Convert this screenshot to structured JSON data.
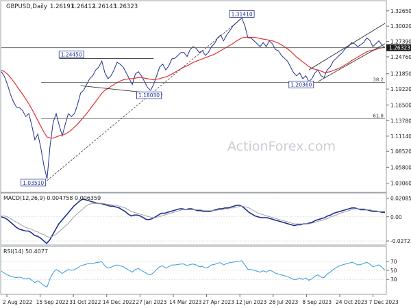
{
  "chart_data": {
    "type": "line",
    "instrument": "GBPUSD",
    "timeframe": "Daily",
    "header": {
      "label": "GBPUSD,Daily",
      "ohlc": [
        "1.26191",
        "1.26412",
        "1.26143",
        "1.26323"
      ]
    },
    "watermark": "ActionForex.com",
    "x_ticks": [
      "2 Aug 2022",
      "15 Sep 2022",
      "31 Oct 2022",
      "14 Dec 2022",
      "27 Jan 2023",
      "14 Mar 2023",
      "27 Apr 2023",
      "12 Jun 2023",
      "26 Jul 2023",
      "8 Sep 2023",
      "24 Oct 2023",
      "7 Dec 2023"
    ],
    "price_panel": {
      "ylim": [
        1.022,
        1.338
      ],
      "y_ticks": [
        "1.32650",
        "1.30020",
        "1.27390",
        "1.24760",
        "1.21850",
        "1.19220",
        "1.16500",
        "1.13780",
        "1.11140",
        "1.08520",
        "1.05800",
        "1.03060"
      ],
      "last_price": "1.26323",
      "series": [
        {
          "name": "Price",
          "color": "#1f2f8f",
          "values": [
            1.222,
            1.214,
            1.2,
            1.183,
            1.17,
            1.161,
            1.16,
            1.155,
            1.145,
            1.15,
            1.13,
            1.105,
            1.115,
            1.09,
            1.06,
            1.038,
            1.095,
            1.135,
            1.15,
            1.13,
            1.112,
            1.132,
            1.15,
            1.145,
            1.15,
            1.165,
            1.185,
            1.19,
            1.2,
            1.21,
            1.215,
            1.225,
            1.23,
            1.24,
            1.22,
            1.21,
            1.215,
            1.225,
            1.238,
            1.235,
            1.23,
            1.22,
            1.21,
            1.2,
            1.218,
            1.222,
            1.215,
            1.205,
            1.195,
            1.19,
            1.2,
            1.215,
            1.23,
            1.235,
            1.225,
            1.232,
            1.244,
            1.245,
            1.25,
            1.255,
            1.255,
            1.248,
            1.26,
            1.265,
            1.262,
            1.255,
            1.258,
            1.25,
            1.255,
            1.265,
            1.27,
            1.28,
            1.285,
            1.275,
            1.285,
            1.292,
            1.3,
            1.305,
            1.31,
            1.314,
            1.3,
            1.28,
            1.28,
            1.275,
            1.27,
            1.265,
            1.272,
            1.265,
            1.275,
            1.27,
            1.26,
            1.258,
            1.25,
            1.245,
            1.24,
            1.23,
            1.22,
            1.215,
            1.22,
            1.21,
            1.215,
            1.205,
            1.21,
            1.22,
            1.225,
            1.215,
            1.212,
            1.225,
            1.23,
            1.24,
            1.245,
            1.25,
            1.255,
            1.262,
            1.265,
            1.272,
            1.27,
            1.265,
            1.268,
            1.272,
            1.28,
            1.276,
            1.265,
            1.27,
            1.275,
            1.268,
            1.263
          ]
        },
        {
          "name": "SMA",
          "color": "#e03030",
          "values": [
            1.225,
            1.222,
            1.218,
            1.212,
            1.205,
            1.198,
            1.19,
            1.183,
            1.175,
            1.167,
            1.158,
            1.148,
            1.138,
            1.128,
            1.118,
            1.11,
            1.108,
            1.108,
            1.11,
            1.112,
            1.113,
            1.115,
            1.118,
            1.122,
            1.127,
            1.132,
            1.138,
            1.144,
            1.15,
            1.157,
            1.164,
            1.171,
            1.178,
            1.185,
            1.19,
            1.193,
            1.197,
            1.2,
            1.203,
            1.206,
            1.208,
            1.209,
            1.21,
            1.21,
            1.211,
            1.212,
            1.212,
            1.211,
            1.21,
            1.209,
            1.208,
            1.209,
            1.21,
            1.212,
            1.213,
            1.215,
            1.218,
            1.221,
            1.224,
            1.227,
            1.23,
            1.232,
            1.235,
            1.238,
            1.24,
            1.242,
            1.244,
            1.246,
            1.248,
            1.25,
            1.252,
            1.255,
            1.258,
            1.261,
            1.264,
            1.267,
            1.27,
            1.274,
            1.277,
            1.28,
            1.281,
            1.281,
            1.281,
            1.281,
            1.28,
            1.279,
            1.278,
            1.277,
            1.276,
            1.275,
            1.273,
            1.271,
            1.268,
            1.265,
            1.261,
            1.257,
            1.252,
            1.247,
            1.243,
            1.239,
            1.235,
            1.231,
            1.228,
            1.226,
            1.225,
            1.223,
            1.221,
            1.221,
            1.222,
            1.224,
            1.226,
            1.228,
            1.231,
            1.234,
            1.237,
            1.241,
            1.244,
            1.247,
            1.25,
            1.253,
            1.256,
            1.258,
            1.259,
            1.26,
            1.262,
            1.263,
            1.264
          ]
        }
      ],
      "levels": [
        {
          "label": "38.2",
          "value": 1.2036
        },
        {
          "label": "61.8",
          "value": 1.1415
        },
        {
          "label": "",
          "value": 1.2632
        }
      ],
      "annotations": [
        {
          "label": "1.31410",
          "x_index": 79,
          "value": 1.3141
        },
        {
          "label": "1.24450",
          "x_index": 23,
          "value": 1.2445
        },
        {
          "label": "1.18030",
          "x_index": 44,
          "value": 1.1803
        },
        {
          "label": "1.20360",
          "x_index": 103,
          "value": 1.2036
        },
        {
          "label": "1.03510",
          "x_index": 15,
          "value": 1.0351
        }
      ]
    },
    "macd_panel": {
      "label": "MACD(12,26,9) 0.004758 0.006359",
      "ylim": [
        -0.0295,
        0.0222
      ],
      "y_ticks": [
        "0.020858",
        "0.00",
        "-0.027213"
      ],
      "series": [
        {
          "name": "MACD",
          "color": "#1f2f8f",
          "values": [
            0.0,
            -0.001,
            -0.003,
            -0.006,
            -0.009,
            -0.012,
            -0.014,
            -0.015,
            -0.016,
            -0.016,
            -0.018,
            -0.021,
            -0.022,
            -0.024,
            -0.027,
            -0.03,
            -0.026,
            -0.02,
            -0.014,
            -0.008,
            -0.004,
            0.0,
            0.004,
            0.008,
            0.012,
            0.015,
            0.018,
            0.02,
            0.019,
            0.018,
            0.017,
            0.016,
            0.015,
            0.015,
            0.014,
            0.013,
            0.012,
            0.012,
            0.011,
            0.01,
            0.008,
            0.006,
            0.003,
            0.001,
            0.002,
            0.002,
            0.001,
            -0.001,
            -0.003,
            -0.003,
            -0.002,
            0.0,
            0.002,
            0.004,
            0.004,
            0.005,
            0.006,
            0.007,
            0.008,
            0.009,
            0.009,
            0.008,
            0.009,
            0.009,
            0.008,
            0.007,
            0.007,
            0.006,
            0.006,
            0.006,
            0.007,
            0.008,
            0.009,
            0.009,
            0.01,
            0.01,
            0.011,
            0.012,
            0.013,
            0.013,
            0.011,
            0.008,
            0.005,
            0.003,
            0.001,
            0.0,
            -0.001,
            -0.001,
            -0.001,
            -0.002,
            -0.003,
            -0.004,
            -0.005,
            -0.006,
            -0.007,
            -0.008,
            -0.009,
            -0.01,
            -0.009,
            -0.009,
            -0.008,
            -0.008,
            -0.007,
            -0.006,
            -0.004,
            -0.003,
            -0.002,
            -0.001,
            0.001,
            0.002,
            0.004,
            0.005,
            0.006,
            0.007,
            0.008,
            0.009,
            0.01,
            0.01,
            0.009,
            0.008,
            0.008,
            0.008,
            0.007,
            0.006,
            0.006,
            0.006,
            0.005,
            0.005
          ]
        },
        {
          "name": "Signal",
          "color": "#a0a0a0",
          "values": [
            0.001,
            0.001,
            0.0,
            -0.002,
            -0.004,
            -0.006,
            -0.008,
            -0.01,
            -0.012,
            -0.013,
            -0.014,
            -0.016,
            -0.017,
            -0.019,
            -0.02,
            -0.022,
            -0.023,
            -0.022,
            -0.02,
            -0.017,
            -0.014,
            -0.011,
            -0.008,
            -0.004,
            0.0,
            0.003,
            0.006,
            0.009,
            0.012,
            0.014,
            0.015,
            0.015,
            0.015,
            0.015,
            0.015,
            0.014,
            0.014,
            0.013,
            0.013,
            0.012,
            0.011,
            0.01,
            0.008,
            0.006,
            0.005,
            0.004,
            0.003,
            0.002,
            0.001,
            0.0,
            -0.001,
            -0.001,
            0.0,
            0.001,
            0.002,
            0.003,
            0.004,
            0.005,
            0.006,
            0.007,
            0.008,
            0.008,
            0.008,
            0.008,
            0.008,
            0.008,
            0.008,
            0.007,
            0.007,
            0.007,
            0.007,
            0.007,
            0.008,
            0.008,
            0.009,
            0.009,
            0.01,
            0.01,
            0.011,
            0.012,
            0.012,
            0.011,
            0.01,
            0.008,
            0.006,
            0.004,
            0.003,
            0.002,
            0.001,
            0.0,
            -0.001,
            -0.002,
            -0.003,
            -0.004,
            -0.005,
            -0.006,
            -0.007,
            -0.008,
            -0.008,
            -0.008,
            -0.008,
            -0.008,
            -0.008,
            -0.007,
            -0.006,
            -0.005,
            -0.004,
            -0.003,
            -0.002,
            0.0,
            0.001,
            0.002,
            0.004,
            0.005,
            0.006,
            0.007,
            0.008,
            0.009,
            0.009,
            0.009,
            0.009,
            0.008,
            0.008,
            0.007,
            0.007,
            0.006,
            0.006,
            0.006
          ]
        }
      ]
    },
    "rsi_panel": {
      "label": "RSI(14) 50.4077",
      "ylim": [
        0,
        100
      ],
      "y_ticks": [
        "70",
        "50",
        "30"
      ],
      "series": [
        {
          "name": "RSI",
          "color": "#3399dd",
          "values": [
            48,
            44,
            40,
            37,
            35,
            34,
            35,
            33,
            31,
            33,
            28,
            23,
            27,
            22,
            16,
            13,
            32,
            45,
            52,
            48,
            43,
            48,
            52,
            50,
            52,
            55,
            60,
            62,
            64,
            66,
            65,
            67,
            68,
            69,
            60,
            55,
            57,
            60,
            62,
            60,
            58,
            54,
            50,
            46,
            52,
            54,
            50,
            46,
            42,
            40,
            45,
            52,
            58,
            60,
            55,
            58,
            62,
            62,
            63,
            64,
            64,
            60,
            63,
            64,
            62,
            58,
            59,
            55,
            57,
            62,
            63,
            66,
            67,
            62,
            65,
            67,
            68,
            69,
            70,
            71,
            62,
            52,
            52,
            50,
            48,
            46,
            49,
            46,
            50,
            48,
            44,
            42,
            40,
            38,
            36,
            33,
            30,
            30,
            33,
            30,
            33,
            28,
            31,
            37,
            40,
            35,
            34,
            42,
            46,
            52,
            56,
            60,
            62,
            64,
            65,
            68,
            66,
            62,
            63,
            65,
            68,
            64,
            58,
            60,
            62,
            57,
            50
          ]
        }
      ]
    }
  }
}
